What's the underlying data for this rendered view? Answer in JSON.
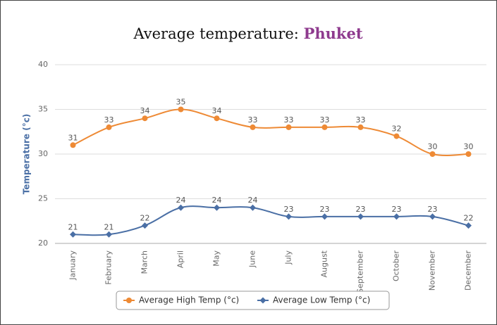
{
  "chart_data": {
    "type": "line",
    "title": "Average temperature:",
    "title_highlight": "Phuket",
    "y_label": "Temperature (°c)",
    "categories": [
      "January",
      "February",
      "March",
      "April",
      "May",
      "June",
      "July",
      "August",
      "September",
      "October",
      "November",
      "December"
    ],
    "series": [
      {
        "name": "Average High Temp (°c)",
        "color": "#ee8a35",
        "values": [
          31,
          33,
          34,
          35,
          34,
          33,
          33,
          33,
          33,
          32,
          30,
          30
        ]
      },
      {
        "name": "Average Low Temp (°c)",
        "color": "#4a6fa5",
        "values": [
          21,
          21,
          22,
          24,
          24,
          24,
          23,
          23,
          23,
          23,
          23,
          22
        ]
      }
    ],
    "ylim": [
      20,
      40
    ],
    "yticks": [
      20,
      25,
      30,
      35,
      40
    ],
    "grid": true,
    "legend": "bottom"
  }
}
